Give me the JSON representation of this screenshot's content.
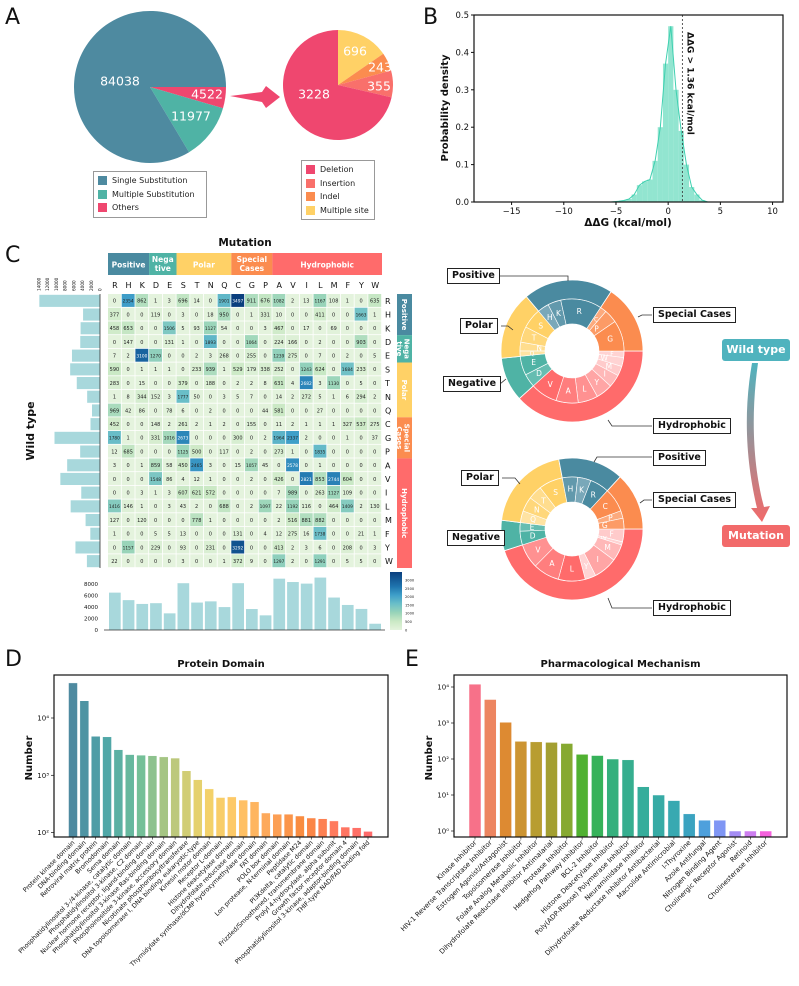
{
  "panel_letters": [
    "A",
    "B",
    "C",
    "D",
    "E"
  ],
  "colors": {
    "positive": "#4a8aa0",
    "negative": "#4fb3a5",
    "polar": "#ffd166",
    "special": "#fb8c4f",
    "hydrophobic": "#ff6b6b",
    "others": "#ef476f",
    "hist": "#7fe0c8",
    "marginal_bar": "#a8d8dc"
  },
  "flow": {
    "wild_type": "Wild type",
    "mutation": "Mutation",
    "wild_type_color": "#4fb3be",
    "mutation_color": "#f26a6a"
  },
  "chart_data": [
    {
      "type": "pie",
      "labels": [
        "Single Substitution",
        "Multiple Substitution",
        "Others"
      ],
      "values": [
        84038,
        11977,
        4522
      ],
      "value_labels": [
        "84038",
        "11977",
        "4522"
      ],
      "colors": [
        "#4e8aa0",
        "#4fb3a5",
        "#ef476f"
      ],
      "legend": "bottom"
    },
    {
      "type": "pie",
      "labels": [
        "Deletion",
        "Insertion",
        "Indel",
        "Multiple site"
      ],
      "values": [
        3228,
        355,
        243,
        696
      ],
      "value_labels": [
        "3228",
        "355",
        "243",
        "696"
      ],
      "colors": [
        "#ef476f",
        "#f9706b",
        "#fb8c4f",
        "#ffd166"
      ],
      "legend": "bottom"
    },
    {
      "type": "area",
      "xlabel": "ΔΔG (kcal/mol)",
      "ylabel": "Probability density",
      "xlim": [
        -18.6,
        11
      ],
      "ylim": [
        0,
        0.5
      ],
      "xticks": [
        "−15",
        "−10",
        "−5",
        "0",
        "5",
        "10"
      ],
      "xtick_values": [
        -15,
        -10,
        -5,
        0,
        5,
        10
      ],
      "yticks": [
        "0.0",
        "0.1",
        "0.2",
        "0.3",
        "0.4",
        "0.5"
      ],
      "ytick_values": [
        0,
        0.1,
        0.2,
        0.3,
        0.4,
        0.5
      ],
      "bin_centers": [
        -4.75,
        -4.25,
        -3.75,
        -3.25,
        -2.75,
        -2.25,
        -1.75,
        -1.25,
        -0.75,
        -0.25,
        0.25,
        0.75,
        1.25,
        1.75,
        2.25,
        2.75,
        3.25
      ],
      "density": [
        0.002,
        0.004,
        0.008,
        0.02,
        0.045,
        0.055,
        0.06,
        0.11,
        0.2,
        0.37,
        0.47,
        0.3,
        0.19,
        0.1,
        0.04,
        0.02,
        0.005
      ],
      "threshold": 1.36,
      "annotation": "ΔΔG > 1.36 kcal/mol"
    },
    {
      "type": "heatmap",
      "title": "Mutation",
      "ylabel": "Wild type",
      "columns": [
        "R",
        "H",
        "K",
        "D",
        "E",
        "S",
        "T",
        "N",
        "Q",
        "C",
        "G",
        "P",
        "A",
        "V",
        "I",
        "L",
        "M",
        "F",
        "Y",
        "W"
      ],
      "rows": [
        "R",
        "H",
        "K",
        "D",
        "E",
        "S",
        "T",
        "N",
        "Q",
        "C",
        "G",
        "P",
        "A",
        "V",
        "I",
        "L",
        "M",
        "F",
        "Y",
        "W"
      ],
      "groups": [
        {
          "name": [
            "Positive"
          ],
          "members": [
            "R",
            "H",
            "K"
          ],
          "color": "#4a8aa0"
        },
        {
          "name": [
            "Nega",
            "tive"
          ],
          "members": [
            "D",
            "E"
          ],
          "color": "#4fb3a5"
        },
        {
          "name": [
            "Polar"
          ],
          "members": [
            "S",
            "T",
            "N",
            "Q"
          ],
          "color": "#ffd166"
        },
        {
          "name": [
            "Special",
            "Cases"
          ],
          "members": [
            "C",
            "G",
            "P"
          ],
          "color": "#fb8c4f"
        },
        {
          "name": [
            "Hydrophobic"
          ],
          "members": [
            "A",
            "V",
            "I",
            "L",
            "M",
            "F",
            "Y",
            "W"
          ],
          "color": "#ff6b6b"
        }
      ],
      "matrix": [
        [
          0,
          2354,
          862,
          1,
          3,
          696,
          14,
          0,
          1901,
          3497,
          911,
          676,
          1082,
          2,
          13,
          1167,
          108,
          1,
          0,
          635
        ],
        [
          377,
          0,
          0,
          119,
          0,
          3,
          0,
          18,
          950,
          0,
          1,
          331,
          10,
          0,
          0,
          411,
          0,
          0,
          1663,
          1
        ],
        [
          458,
          653,
          0,
          0,
          1506,
          5,
          93,
          1127,
          54,
          0,
          0,
          3,
          467,
          0,
          17,
          0,
          69,
          0,
          0,
          0
        ],
        [
          0,
          147,
          0,
          0,
          131,
          1,
          0,
          1893,
          0,
          0,
          1064,
          0,
          224,
          166,
          0,
          2,
          0,
          0,
          903,
          0
        ],
        [
          7,
          2,
          3100,
          1270,
          0,
          0,
          2,
          3,
          268,
          0,
          255,
          0,
          1239,
          275,
          0,
          7,
          0,
          2,
          0,
          5
        ],
        [
          590,
          0,
          1,
          1,
          1,
          0,
          233,
          939,
          1,
          529,
          179,
          338,
          252,
          0,
          1243,
          624,
          0,
          1684,
          233,
          0
        ],
        [
          283,
          0,
          15,
          0,
          0,
          379,
          0,
          188,
          0,
          2,
          2,
          8,
          631,
          4,
          2682,
          3,
          1130,
          0,
          5,
          0
        ],
        [
          1,
          8,
          344,
          152,
          3,
          1777,
          50,
          0,
          3,
          5,
          7,
          0,
          14,
          2,
          272,
          5,
          1,
          6,
          294,
          2
        ],
        [
          969,
          42,
          86,
          0,
          78,
          6,
          0,
          2,
          0,
          0,
          0,
          44,
          581,
          0,
          0,
          27,
          0,
          0,
          0,
          0
        ],
        [
          452,
          0,
          0,
          148,
          2,
          261,
          2,
          1,
          2,
          0,
          155,
          0,
          11,
          2,
          1,
          1,
          1,
          327,
          537,
          275
        ],
        [
          1780,
          1,
          0,
          331,
          1016,
          2673,
          0,
          0,
          0,
          300,
          0,
          2,
          1964,
          2337,
          2,
          0,
          0,
          1,
          0,
          37
        ],
        [
          12,
          685,
          0,
          0,
          0,
          1125,
          500,
          0,
          117,
          0,
          2,
          0,
          273,
          1,
          0,
          1835,
          0,
          0,
          0,
          0
        ],
        [
          3,
          0,
          1,
          859,
          58,
          450,
          2465,
          3,
          0,
          15,
          1057,
          45,
          0,
          2578,
          0,
          1,
          0,
          0,
          0,
          0
        ],
        [
          0,
          0,
          0,
          1548,
          86,
          4,
          12,
          1,
          0,
          0,
          2,
          0,
          426,
          0,
          2821,
          853,
          2744,
          604,
          0,
          0
        ],
        [
          0,
          0,
          3,
          1,
          3,
          607,
          621,
          572,
          0,
          0,
          0,
          0,
          7,
          989,
          0,
          263,
          1127,
          109,
          0,
          0
        ],
        [
          1416,
          146,
          1,
          0,
          3,
          43,
          2,
          0,
          688,
          0,
          2,
          1097,
          22,
          1192,
          116,
          0,
          464,
          1409,
          2,
          130
        ],
        [
          127,
          0,
          120,
          0,
          0,
          0,
          778,
          1,
          0,
          0,
          0,
          0,
          2,
          516,
          881,
          882,
          0,
          0,
          0,
          0
        ],
        [
          1,
          0,
          0,
          5,
          5,
          13,
          0,
          0,
          0,
          131,
          0,
          4,
          12,
          275,
          16,
          1738,
          0,
          0,
          21,
          1
        ],
        [
          0,
          1157,
          0,
          229,
          0,
          93,
          0,
          231,
          0,
          3292,
          0,
          0,
          413,
          2,
          3,
          6,
          0,
          208,
          0,
          3
        ],
        [
          22,
          0,
          0,
          0,
          0,
          3,
          0,
          0,
          1,
          372,
          9,
          0,
          1297,
          2,
          0,
          1291,
          0,
          5,
          5,
          0
        ]
      ],
      "row_marginal_ticks": [
        "14000",
        "12000",
        "10000",
        "8000",
        "6000",
        "4000",
        "2000",
        "0"
      ],
      "row_marginal_tick_values": [
        14000,
        12000,
        10000,
        8000,
        6000,
        4000,
        2000,
        0
      ],
      "col_marginal_ticks": [
        "8000",
        "6000",
        "4000",
        "2000",
        "0"
      ],
      "col_marginal_tick_values": [
        8000,
        6000,
        4000,
        2000,
        0
      ],
      "colorbar_ticks": [
        "3000",
        "2500",
        "2000",
        "1500",
        "1000",
        "500",
        "0"
      ],
      "colorbar_tick_values": [
        3000,
        2500,
        2000,
        1500,
        1000,
        500,
        0
      ],
      "colorbar_range": [
        0,
        3500
      ]
    },
    {
      "type": "pie",
      "subtype": "sunburst",
      "of": "Wild type",
      "group_labels": [
        "Hydrophobic",
        "Negative",
        "Polar",
        "Positive",
        "Special Cases"
      ],
      "groups": [
        [
          "F",
          "W",
          "M",
          "I",
          "Y",
          "L",
          "A",
          "V"
        ],
        [
          "D",
          "E"
        ],
        [
          "Q",
          "N",
          "T",
          "S"
        ],
        [
          "H",
          "K",
          "R"
        ],
        [
          "C",
          "P",
          "G"
        ]
      ]
    },
    {
      "type": "pie",
      "subtype": "sunburst",
      "of": "Mutation",
      "group_labels": [
        "Hydrophobic",
        "Negative",
        "Polar",
        "Positive",
        "Special Cases"
      ],
      "groups": [
        [
          "F",
          "W",
          "M",
          "I",
          "Y",
          "L",
          "A",
          "V"
        ],
        [
          "D",
          "E"
        ],
        [
          "Q",
          "N",
          "T",
          "S"
        ],
        [
          "H",
          "K",
          "R"
        ],
        [
          "C",
          "P",
          "G"
        ]
      ]
    },
    {
      "type": "bar",
      "title": "Protein Domain",
      "ylabel": "Number",
      "yscale": "log",
      "yticks": [
        "10⁴",
        "10³",
        "10²"
      ],
      "ytick_values": [
        10000,
        1000,
        100
      ],
      "categories": [
        "Protein kinase domain",
        "DNA-binding domain",
        "Retroviral matrix protein",
        "Bromodomain",
        "Sema domain",
        "Phosphatidylinositol 3-/4-kinase, catalytic domain",
        "Phosphatidylinositol 3-kinase, C2 domain",
        "Nuclear hormone receptor, ligand-binding domain",
        "Phosphatidylinositol 3-kinase Ras-binding domain",
        "Phosphoinositide 3-kinase, accessory domain",
        "Nicotinate phosphoribosyltransferase",
        "DNA topoisomerase I, DNA binding, eukaryotic-type",
        "Kinesin motor domain",
        "Receptor L-domain",
        "Histone deacetylase domain",
        "Dihydrofolate reductase domain",
        "Thymidylate synthase/dCMP hydroxymethylase domain",
        "FAT domain",
        "POLO box domain",
        "Lon protease, N-terminal domain",
        "Peptidase M24",
        "PI3Kdelta, catalytic domain",
        "Frizzled/Smoothened, transmembrane domain",
        "Prolyl 4-hydroxylase, alpha subunit",
        "Growth factor receptor domain 4",
        "Phosphatidylinositol 3-kinase, adaptor-binding domain",
        "THIF-type NAD/FAD binding fold"
      ],
      "values": [
        41000,
        20000,
        4800,
        4700,
        2800,
        2300,
        2250,
        2200,
        2100,
        2000,
        1200,
        840,
        580,
        410,
        420,
        370,
        345,
        220,
        210,
        210,
        195,
        180,
        175,
        160,
        125,
        122,
        105
      ],
      "palette": [
        "#4e8aa0",
        "#4fa6a8",
        "#6fbf9a",
        "#b5c77e",
        "#f1d36a",
        "#ffc766",
        "#fda55a",
        "#f98a3e",
        "#ff7a5e",
        "#ff6b6b"
      ]
    },
    {
      "type": "bar",
      "title": "Pharmacological Mechanism",
      "ylabel": "Number",
      "yscale": "log",
      "yticks": [
        "10⁴",
        "10³",
        "10²",
        "10¹",
        "10⁰"
      ],
      "ytick_values": [
        10000,
        1000,
        100,
        10,
        1
      ],
      "categories": [
        "Kinase Inhibitor",
        "HIV-1 Reverse Transcriptase Inhibitor",
        "Estrogen Agonist/Antagonist",
        "Topoisomerase Inhibitor",
        "Folate Analog Metabolic Inhibitor",
        "Dihydrofolate Reductase Inhibitor Antimalarial",
        "Protease Inhibitor",
        "Hedgehog Pathway Inhibitor",
        "BCL-2 Inhibitor",
        "Histone Deacetylase Inhibitor",
        "Poly(ADP-Ribose) Polymerase Inhibitor",
        "Neuraminidase Inhibitor",
        "Dihydrofolate Reductase Inhibitor Antibacterial",
        "Macrolide Antimicrobial",
        "l-Thyroxine",
        "Azole Antifungal",
        "Nitrogen Binding Agent",
        "Cholinergic Receptor Agonist",
        "Retinoid",
        "Cholinesterase Inhibitor"
      ],
      "values": [
        12000,
        4500,
        1050,
        310,
        300,
        290,
        270,
        135,
        125,
        100,
        95,
        17,
        10,
        7,
        3,
        2,
        2,
        1,
        1,
        1
      ],
      "colors": [
        "#f77189",
        "#ed8560",
        "#dd8a32",
        "#cc9432",
        "#b89d31",
        "#a39f31",
        "#86a931",
        "#50b131",
        "#36b25a",
        "#36b07d",
        "#36ae8f",
        "#36ad9b",
        "#37aba5",
        "#38a9b1",
        "#3ba3c0",
        "#4ea0dc",
        "#7f96f4",
        "#a48cf4",
        "#cd7ef0",
        "#f561dd"
      ]
    }
  ]
}
